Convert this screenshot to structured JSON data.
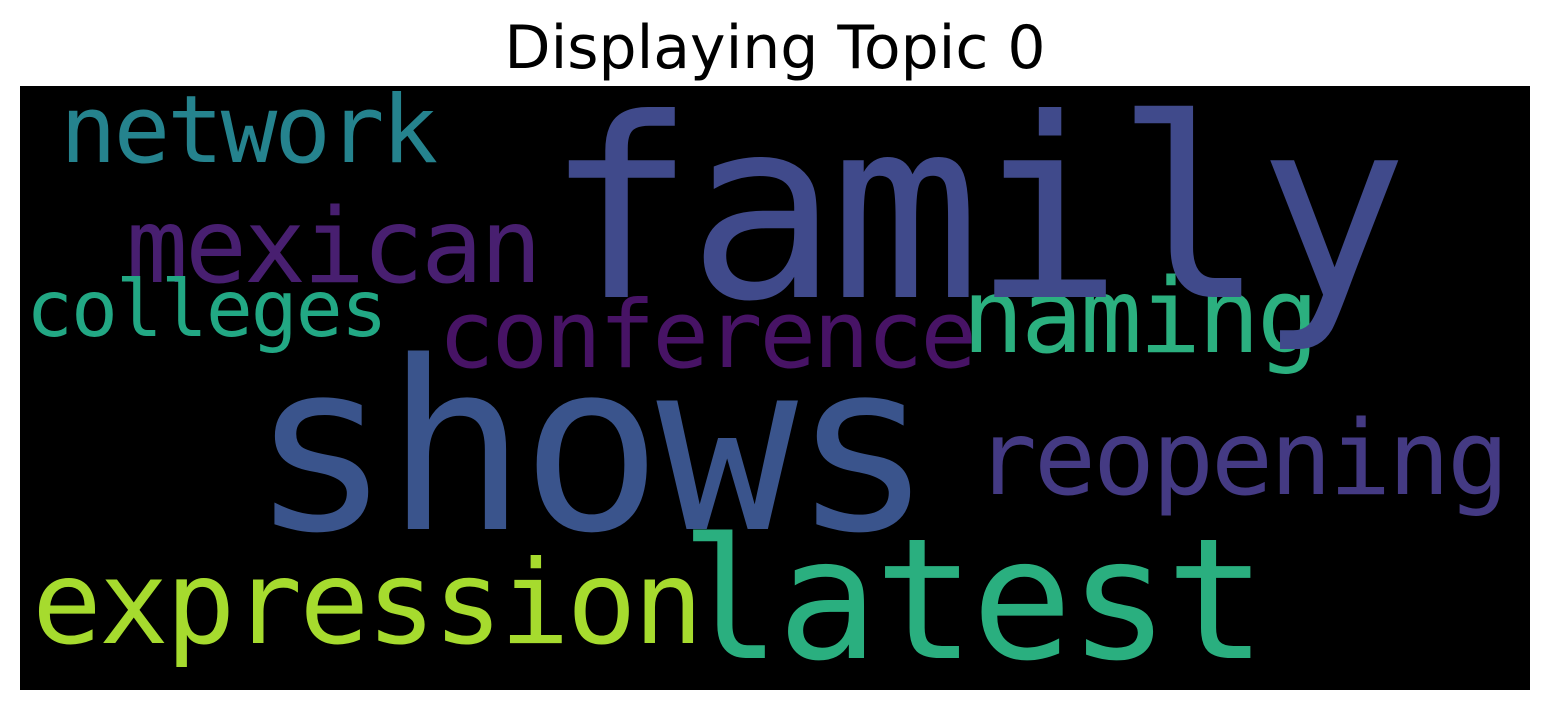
{
  "title": "Displaying Topic 0",
  "background_color": "#000000",
  "words": {
    "family": {
      "text": "family",
      "color": "#404a8b"
    },
    "shows": {
      "text": "shows",
      "color": "#3a548c"
    },
    "latest": {
      "text": "latest",
      "color": "#2aaf7f"
    },
    "expression": {
      "text": "expression",
      "color": "#a6db2e"
    },
    "reopening": {
      "text": "reopening",
      "color": "#443a83"
    },
    "conference": {
      "text": "conference",
      "color": "#471365"
    },
    "naming": {
      "text": "naming",
      "color": "#2bb07f"
    },
    "mexican": {
      "text": "mexican",
      "color": "#481f70"
    },
    "network": {
      "text": "network",
      "color": "#25838e"
    },
    "colleges": {
      "text": "colleges",
      "color": "#22a884"
    }
  }
}
